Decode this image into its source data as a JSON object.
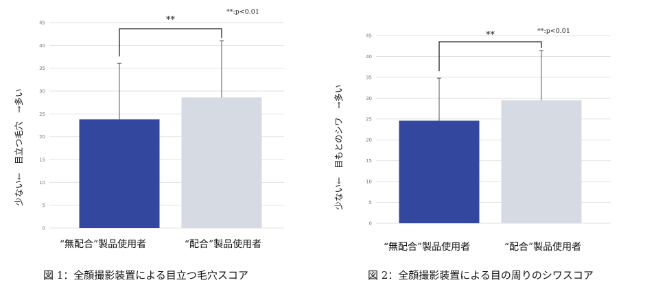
{
  "chart_data": [
    {
      "type": "bar",
      "caption": "図 1：全顔撮影装置による目立つ毛穴スコア",
      "ylabel": "少ない←　目立つ毛穴　→多い",
      "categories": [
        "“無配合”製品使用者",
        "“配合”製品使用者"
      ],
      "values": [
        23.8,
        28.6
      ],
      "errors": [
        12.3,
        12.4
      ],
      "ylim": [
        0,
        45
      ],
      "yticks": [
        "0",
        "5",
        "10",
        "15",
        "20",
        "25",
        "30",
        "35",
        "40",
        "45"
      ],
      "significance": "**",
      "p_note": "**:p<0.01",
      "colors": [
        "#34479f",
        "#d5dae3"
      ],
      "grid": true
    },
    {
      "type": "bar",
      "caption": "図 2：全顔撮影装置による目の周りのシワスコア",
      "ylabel": "少ない←　目もとのシワ　→多い",
      "categories": [
        "“無配合”製品使用者",
        "“配合”製品使用者"
      ],
      "values": [
        24.6,
        29.5
      ],
      "errors": [
        10.2,
        11.9
      ],
      "ylim": [
        0,
        45
      ],
      "yticks": [
        "0",
        "5",
        "10",
        "15",
        "20",
        "25",
        "30",
        "35",
        "40",
        "45"
      ],
      "significance": "**",
      "p_note": "**:p<0.01",
      "colors": [
        "#34479f",
        "#d5dae3"
      ],
      "grid": true
    }
  ]
}
